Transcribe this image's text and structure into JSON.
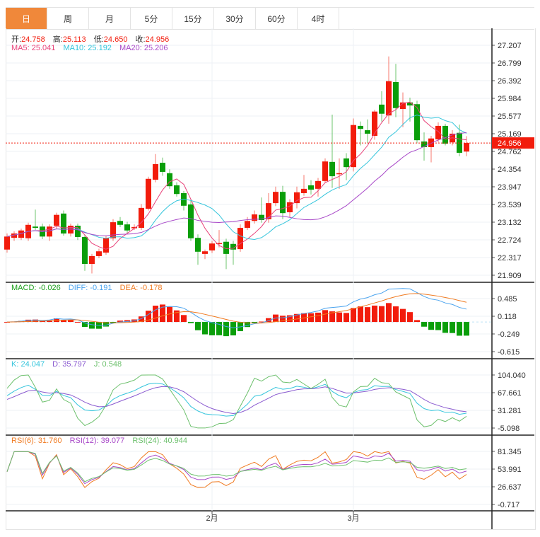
{
  "tabs": [
    {
      "label": "日",
      "active": true
    },
    {
      "label": "周"
    },
    {
      "label": "月"
    },
    {
      "label": "5分"
    },
    {
      "label": "15分"
    },
    {
      "label": "30分"
    },
    {
      "label": "60分"
    },
    {
      "label": "4时"
    }
  ],
  "ohlc_legend": {
    "open_label": "开:",
    "open": "24.758",
    "high_label": "高:",
    "high": "25.113",
    "low_label": "低:",
    "low": "24.650",
    "close_label": "收:",
    "close": "24.956"
  },
  "ma_legend": {
    "ma5": "MA5: 25.041",
    "ma10": "MA10: 25.192",
    "ma20": "MA20: 25.206"
  },
  "macd_legend": {
    "macd": "MACD: -0.026",
    "diff": "DIFF: -0.191",
    "dea": "DEA: -0.178"
  },
  "kdj_legend": {
    "k": "K: 24.047",
    "d": "D: 35.797",
    "j": "J: 0.548"
  },
  "rsi_legend": {
    "rsi6": "RSI(6): 31.760",
    "rsi12": "RSI(12): 39.077",
    "rsi24": "RSI(24): 40.944"
  },
  "price_axis": {
    "ticks": [
      "27.207",
      "26.799",
      "26.392",
      "25.984",
      "25.577",
      "25.169",
      "24.762",
      "24.354",
      "23.947",
      "23.539",
      "23.132",
      "22.724",
      "22.317",
      "21.909"
    ],
    "max": 27.207,
    "min": 21.909,
    "last_price": "24.956"
  },
  "macd_axis": {
    "ticks": [
      "0.485",
      "0.118",
      "-0.249",
      "-0.615"
    ],
    "max": 0.485,
    "min": -0.615
  },
  "kdj_axis": {
    "ticks": [
      "104.040",
      "67.661",
      "31.281",
      "-5.098"
    ],
    "max": 104.04,
    "min": -5.098
  },
  "rsi_axis": {
    "ticks": [
      "81.345",
      "53.991",
      "26.637",
      "-0.717"
    ],
    "max": 81.345,
    "min": -0.717
  },
  "x_axis": [
    {
      "label": "2月",
      "index": 29
    },
    {
      "label": "3月",
      "index": 49
    }
  ],
  "colors": {
    "up": "#f21c0c",
    "down": "#0a9e0a",
    "ma5": "#e8437a",
    "ma10": "#35c5dc",
    "ma20": "#a848c8",
    "diff": "#4aa3ee",
    "dea": "#f07a20",
    "k": "#35c5dc",
    "d": "#8a5ad0",
    "j": "#6cc06c",
    "rsi6": "#f07a20",
    "rsi12": "#a848c8",
    "rsi24": "#6cc06c"
  },
  "candles": [
    [
      22.5,
      22.87,
      22.43,
      22.8
    ],
    [
      22.77,
      22.92,
      22.7,
      22.87
    ],
    [
      22.77,
      22.98,
      22.72,
      22.94
    ],
    [
      22.76,
      23.12,
      22.7,
      23.07
    ],
    [
      23.03,
      23.42,
      22.95,
      23.0
    ],
    [
      23.03,
      23.1,
      22.74,
      22.8
    ],
    [
      22.8,
      23.08,
      22.7,
      23.03
    ],
    [
      23.05,
      23.35,
      22.98,
      23.3
    ],
    [
      23.33,
      23.4,
      22.82,
      22.87
    ],
    [
      22.87,
      23.1,
      22.8,
      23.05
    ],
    [
      23.05,
      23.1,
      22.72,
      22.79
    ],
    [
      22.79,
      22.83,
      22.01,
      22.17
    ],
    [
      22.17,
      22.4,
      21.95,
      22.35
    ],
    [
      22.35,
      22.52,
      22.3,
      22.46
    ],
    [
      22.43,
      22.82,
      22.38,
      22.77
    ],
    [
      22.76,
      23.2,
      22.7,
      23.13
    ],
    [
      23.16,
      23.25,
      23.02,
      23.07
    ],
    [
      23.08,
      23.14,
      22.88,
      22.94
    ],
    [
      22.99,
      23.08,
      22.95,
      23.02
    ],
    [
      23.0,
      23.55,
      22.95,
      23.46
    ],
    [
      23.44,
      24.18,
      23.4,
      24.13
    ],
    [
      24.11,
      24.7,
      24.05,
      24.47
    ],
    [
      24.5,
      24.62,
      24.2,
      24.29
    ],
    [
      24.26,
      24.35,
      23.9,
      23.96
    ],
    [
      23.98,
      24.05,
      23.72,
      23.78
    ],
    [
      23.8,
      23.85,
      23.4,
      23.51
    ],
    [
      23.54,
      23.65,
      22.7,
      22.76
    ],
    [
      22.77,
      22.85,
      22.15,
      22.45
    ],
    [
      22.4,
      22.5,
      22.28,
      22.46
    ],
    [
      22.48,
      22.7,
      22.42,
      22.64
    ],
    [
      22.63,
      22.95,
      22.55,
      22.65
    ],
    [
      22.68,
      22.75,
      22.05,
      22.4
    ],
    [
      22.63,
      22.7,
      22.15,
      22.5
    ],
    [
      22.51,
      23.08,
      22.45,
      23.0
    ],
    [
      23.0,
      23.25,
      22.95,
      23.16
    ],
    [
      23.16,
      23.4,
      23.1,
      23.31
    ],
    [
      23.3,
      23.7,
      23.12,
      23.18
    ],
    [
      23.2,
      23.8,
      23.12,
      23.57
    ],
    [
      23.57,
      23.95,
      23.5,
      23.83
    ],
    [
      23.83,
      23.97,
      23.2,
      23.34
    ],
    [
      23.36,
      23.66,
      23.25,
      23.59
    ],
    [
      23.57,
      23.95,
      23.45,
      23.82
    ],
    [
      23.8,
      24.22,
      23.74,
      23.9
    ],
    [
      23.98,
      24.1,
      23.77,
      23.88
    ],
    [
      23.9,
      24.15,
      23.72,
      24.08
    ],
    [
      24.08,
      24.6,
      24.05,
      24.53
    ],
    [
      24.52,
      25.61,
      23.92,
      24.19
    ],
    [
      24.24,
      24.6,
      23.9,
      24.26
    ],
    [
      24.6,
      24.72,
      24.1,
      24.4
    ],
    [
      24.4,
      25.52,
      24.3,
      25.37
    ],
    [
      25.35,
      25.45,
      24.9,
      25.28
    ],
    [
      25.25,
      25.5,
      24.95,
      25.17
    ],
    [
      25.12,
      25.72,
      25.03,
      25.68
    ],
    [
      25.84,
      26.15,
      25.45,
      25.63
    ],
    [
      25.59,
      26.95,
      25.4,
      26.38
    ],
    [
      26.36,
      26.78,
      25.55,
      25.76
    ],
    [
      25.74,
      26.12,
      25.32,
      25.89
    ],
    [
      25.89,
      26.0,
      25.45,
      25.82
    ],
    [
      25.85,
      25.93,
      24.95,
      25.02
    ],
    [
      24.99,
      25.2,
      24.55,
      24.86
    ],
    [
      24.86,
      25.12,
      24.51,
      25.06
    ],
    [
      25.04,
      25.43,
      24.97,
      25.35
    ],
    [
      25.35,
      25.4,
      24.9,
      24.94
    ],
    [
      24.97,
      25.25,
      24.9,
      25.17
    ],
    [
      25.19,
      25.38,
      24.65,
      24.73
    ],
    [
      24.758,
      25.113,
      24.65,
      24.956
    ]
  ]
}
